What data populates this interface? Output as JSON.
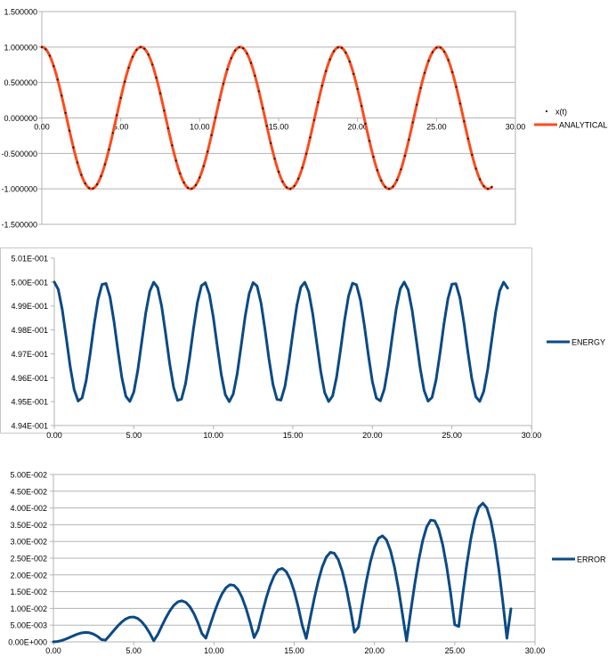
{
  "chart_data": [
    {
      "type": "scatter-line",
      "title": "",
      "xlabel": "",
      "ylabel": "",
      "xlim": [
        0,
        30
      ],
      "ylim": [
        -1.5,
        1.5
      ],
      "x_ticks": [
        "0.00",
        "5.00",
        "10.00",
        "15.00",
        "20.00",
        "25.00",
        "30.00"
      ],
      "y_ticks": [
        "1.500000",
        "1.000000",
        "0.500000",
        "0.000000",
        "-0.500000",
        "-1.000000",
        "-1.500000"
      ],
      "grid": "horizontal",
      "legend": "right",
      "series": [
        {
          "name": "x(t)",
          "style": "points",
          "color": "#1a1a1a",
          "function": "cos(t)",
          "t_start": 0,
          "t_end": 28.5,
          "t_step": 0.25
        },
        {
          "name": "ANALYTICAL",
          "style": "line",
          "color": "#ff4a1c",
          "function": "cos(t)",
          "t_start": 0,
          "t_end": 28.5,
          "t_step": 0.05
        }
      ]
    },
    {
      "type": "line",
      "title": "",
      "xlabel": "",
      "ylabel": "",
      "xlim": [
        0,
        30
      ],
      "ylim": [
        0.494,
        0.501
      ],
      "x_ticks": [
        "0.00",
        "5.00",
        "10.00",
        "15.00",
        "20.00",
        "25.00",
        "30.00"
      ],
      "y_ticks": [
        "5.01E-001",
        "5.00E-001",
        "4.99E-001",
        "4.98E-001",
        "4.97E-001",
        "4.96E-001",
        "4.95E-001",
        "4.94E-001"
      ],
      "grid": "none",
      "legend": "right",
      "series": [
        {
          "name": "ENERGY",
          "color": "#0b4a84",
          "function": "0.4975 + 0.0025*cos(2t)",
          "t_start": 0,
          "t_end": 28.5,
          "t_step": 0.25
        }
      ]
    },
    {
      "type": "line",
      "title": "",
      "xlabel": "",
      "ylabel": "",
      "xlim": [
        0,
        30
      ],
      "ylim": [
        0,
        0.05
      ],
      "x_ticks": [
        "0.00",
        "5.00",
        "10.00",
        "15.00",
        "20.00",
        "25.00",
        "30.00"
      ],
      "y_ticks": [
        "5.00E-002",
        "4.50E-002",
        "4.00E-002",
        "3.50E-002",
        "3.00E-002",
        "2.50E-002",
        "2.00E-002",
        "1.50E-002",
        "1.00E-002",
        "5.00E-003",
        "0.00E+000"
      ],
      "grid": "horizontal",
      "legend": "right",
      "series": [
        {
          "name": "ERROR",
          "color": "#0b4a84",
          "function": "abs(0.00155*t*sin(t))",
          "t_start": 0,
          "t_end": 28.5,
          "t_step": 0.25
        }
      ]
    }
  ]
}
